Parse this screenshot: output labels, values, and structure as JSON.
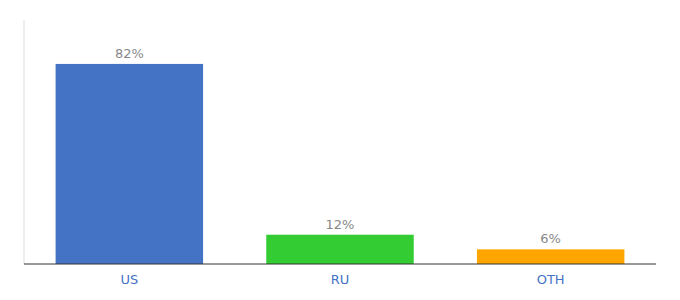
{
  "chart_data": {
    "type": "bar",
    "categories": [
      "US",
      "RU",
      "OTH"
    ],
    "values": [
      82,
      12,
      6
    ],
    "value_labels": [
      "82%",
      "12%",
      "6%"
    ],
    "colors": [
      "#4472C4",
      "#33CC33",
      "#FFA500"
    ],
    "ylim": [
      0,
      100
    ],
    "data_labels": true,
    "tick_labels": "x"
  }
}
